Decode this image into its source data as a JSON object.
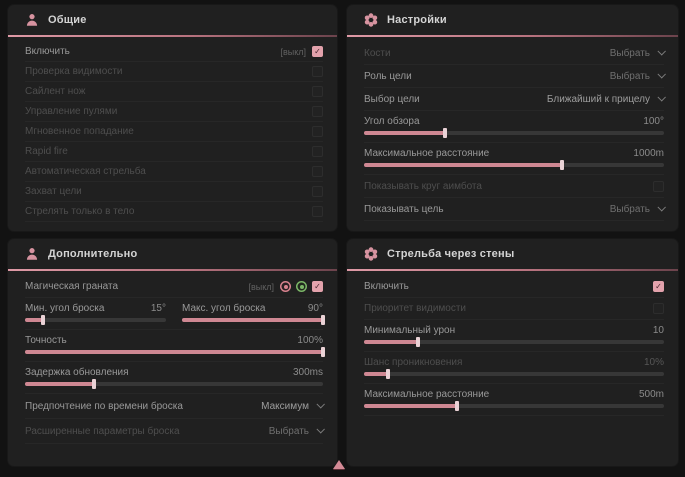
{
  "colors": {
    "accent": "#d994a0",
    "green_icon": "#7cb768",
    "panel_bg": "#202020",
    "page_bg": "#121212",
    "checkbox_checked": "#e3a2ac",
    "slider_fill": "#cf8893"
  },
  "panels": {
    "general": {
      "title": "Общие",
      "icon": "person-icon",
      "rows": [
        {
          "label": "Включить",
          "badge": "[выкл]",
          "checked": true
        },
        {
          "label": "Проверка видимости",
          "checked": false
        },
        {
          "label": "Сайлент нож",
          "checked": false
        },
        {
          "label": "Управление пулями",
          "checked": false
        },
        {
          "label": "Мгновенное попадание",
          "checked": false
        },
        {
          "label": "Rapid fire",
          "checked": false
        },
        {
          "label": "Автоматическая стрельба",
          "checked": false
        },
        {
          "label": "Захват цели",
          "checked": false
        },
        {
          "label": "Стрелять только в тело",
          "checked": false
        }
      ]
    },
    "settings": {
      "title": "Настройки",
      "icon": "gear-icon",
      "rows": [
        {
          "label": "Кости",
          "type": "dropdown",
          "value": "Выбрать"
        },
        {
          "label": "Роль цели",
          "type": "dropdown",
          "value": "Выбрать"
        },
        {
          "label": "Выбор цели",
          "type": "dropdown",
          "value": "Ближайший к прицелу"
        },
        {
          "label": "Угол обзора",
          "type": "slider",
          "value": "100°",
          "fill": 27
        },
        {
          "label": "Максимальное расстояние",
          "type": "slider",
          "value": "1000m",
          "fill": 66
        },
        {
          "label": "Показывать круг аимбота",
          "type": "checkbox",
          "checked": false
        },
        {
          "label": "Показывать цель",
          "type": "dropdown",
          "value": "Выбрать"
        }
      ]
    },
    "additional": {
      "title": "Дополнительно",
      "icon": "person-icon",
      "rows": [
        {
          "label": "Магическая граната",
          "badge": "[выкл]",
          "checked": true
        },
        {
          "label": "Мин. угол броска",
          "type": "slider",
          "value": "15°",
          "fill": 13
        },
        {
          "label": "Макс. угол броска",
          "type": "slider",
          "value": "90°",
          "fill": 100
        },
        {
          "label": "Точность",
          "type": "slider",
          "value": "100%",
          "fill": 100
        },
        {
          "label": "Задержка обновления",
          "type": "slider",
          "value": "300ms",
          "fill": 23
        },
        {
          "label": "Предпочтение по времени броска",
          "type": "dropdown",
          "value": "Максимум"
        },
        {
          "label": "Расширенные параметры броска",
          "type": "dropdown",
          "value": "Выбрать"
        }
      ]
    },
    "wallbang": {
      "title": "Стрельба через стены",
      "icon": "gear-icon",
      "rows": [
        {
          "label": "Включить",
          "checked": true
        },
        {
          "label": "Приоритет видимости",
          "checked": false
        },
        {
          "label": "Минимальный урон",
          "type": "slider",
          "value": "10",
          "fill": 18
        },
        {
          "label": "Шанс проникновения",
          "type": "slider",
          "value": "10%",
          "fill": 8
        },
        {
          "label": "Максимальное расстояние",
          "type": "slider",
          "value": "500m",
          "fill": 31
        }
      ]
    }
  }
}
